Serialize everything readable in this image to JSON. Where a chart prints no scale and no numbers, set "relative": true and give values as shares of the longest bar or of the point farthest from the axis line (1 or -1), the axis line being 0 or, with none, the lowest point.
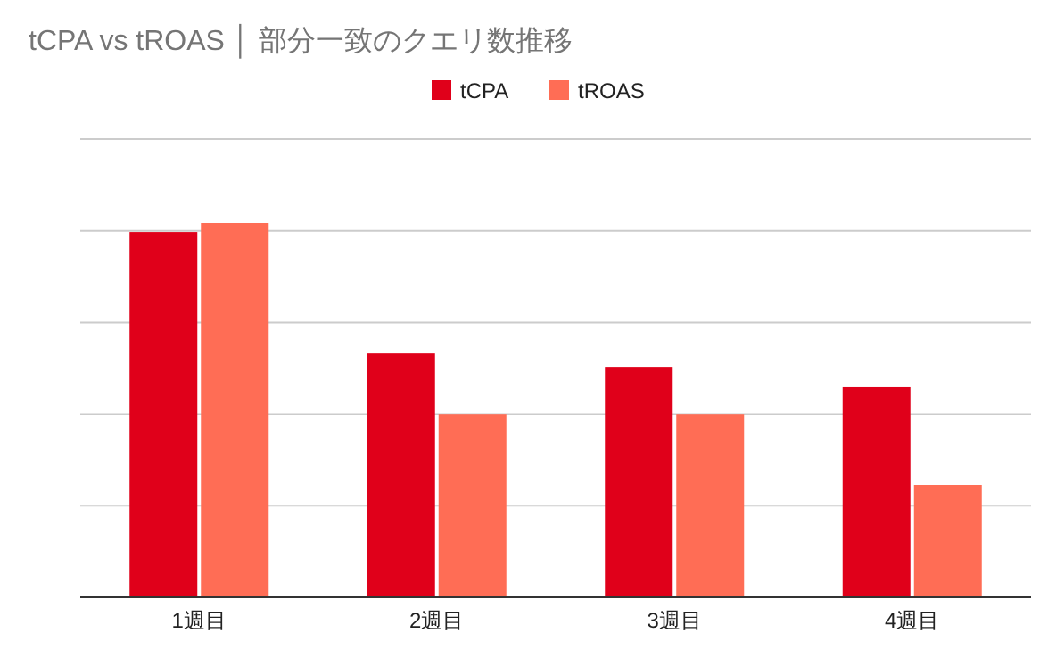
{
  "chart_data": {
    "type": "bar",
    "title": "tCPA vs tROAS │ 部分一致のクエリ数推移",
    "relative": true,
    "categories": [
      "1週目",
      "2週目",
      "3週目",
      "4週目"
    ],
    "series": [
      {
        "name": "tCPA",
        "color": "#e0001a",
        "values": [
          0.976,
          0.652,
          0.614,
          0.562
        ]
      },
      {
        "name": "tROAS",
        "color": "#ff6d55",
        "values": [
          1,
          0.49,
          0.49,
          0.3
        ]
      }
    ],
    "grid": true,
    "legend": "top"
  }
}
